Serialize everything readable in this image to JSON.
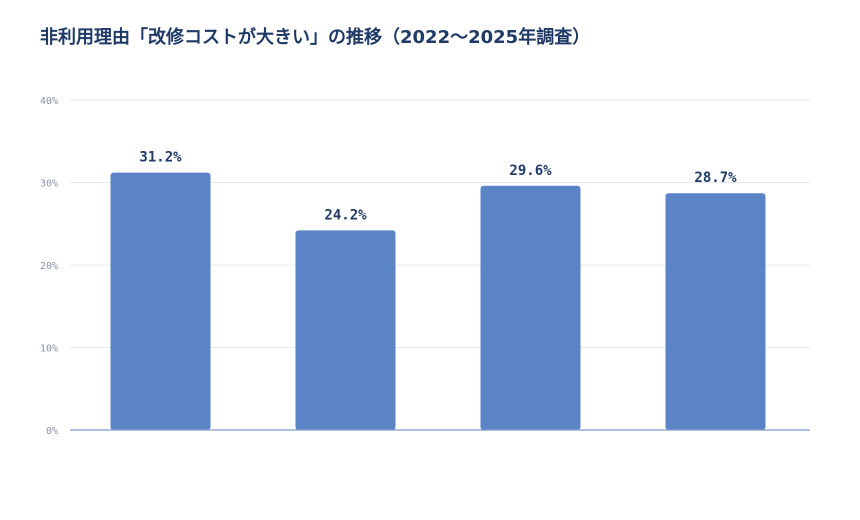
{
  "chart_data": {
    "type": "bar",
    "title": "非利用理由「改修コストが大きい」の推移（2022〜2025年調査）",
    "categories": [
      "",
      "",
      "",
      ""
    ],
    "values": [
      31.2,
      24.2,
      29.6,
      28.7
    ],
    "value_labels": [
      "31.2%",
      "24.2%",
      "29.6%",
      "28.7%"
    ],
    "ylim": [
      0,
      40
    ],
    "y_ticks": [
      0,
      10,
      20,
      30,
      40
    ],
    "y_tick_labels": [
      "0%",
      "10%",
      "20%",
      "30%",
      "40%"
    ],
    "xlabel": "",
    "ylabel": "",
    "grid": true,
    "colors": {
      "bar": "#5b84c6",
      "grid": "#e6e9ee",
      "axis": "#7f9cc6",
      "title": "#1f3a66",
      "label": "#1f3a66",
      "tick": "#8a94a6"
    }
  }
}
